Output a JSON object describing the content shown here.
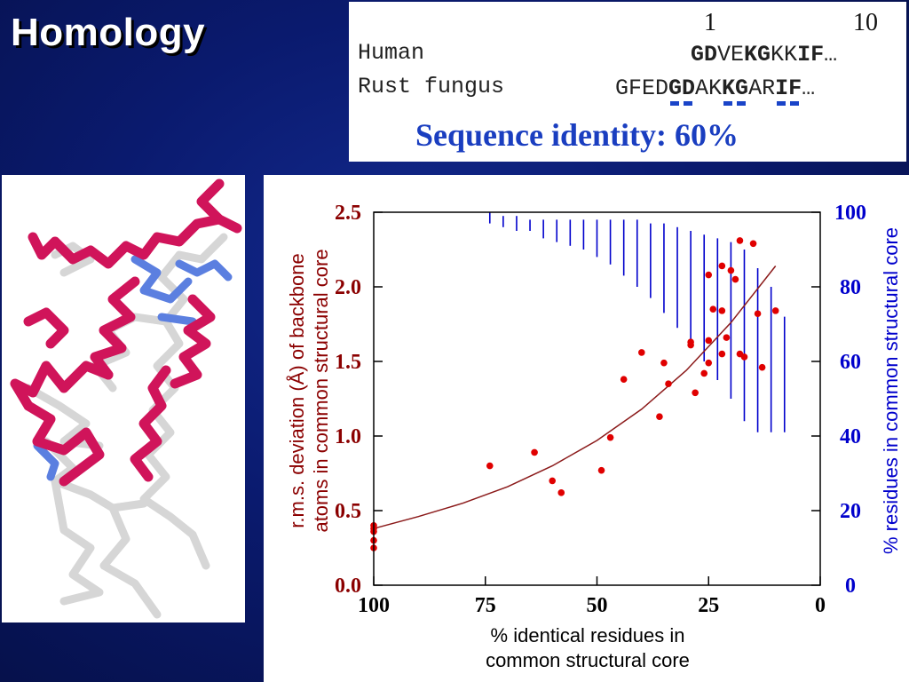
{
  "title": "Homology",
  "alignment": {
    "positions": [
      "1",
      "10"
    ],
    "rows": [
      {
        "species": "Human",
        "segments": [
          {
            "text": "GD",
            "bold": true
          },
          {
            "text": "VE",
            "bold": false
          },
          {
            "text": "KG",
            "bold": true
          },
          {
            "text": "KK",
            "bold": false
          },
          {
            "text": "IF",
            "bold": true
          },
          {
            "text": "…",
            "bold": false
          }
        ]
      },
      {
        "species": "Rust fungus",
        "segments": [
          {
            "text": "GFED",
            "bold": false
          },
          {
            "text": "GD",
            "bold": true
          },
          {
            "text": "AK",
            "bold": false
          },
          {
            "text": "KG",
            "bold": true
          },
          {
            "text": "AR",
            "bold": false
          },
          {
            "text": "IF",
            "bold": true
          },
          {
            "text": "…",
            "bold": false
          }
        ]
      }
    ],
    "identity_label": "Sequence identity:  60%",
    "match_color": "#1a44c8"
  },
  "chart_data": {
    "type": "scatter",
    "xlabel": "% identical residues in common structural core",
    "ylabel": "r.m.s. deviation (Å) of backbone atoms in common structural core",
    "y2label": "% residues in common structural core",
    "xlim": [
      100,
      0
    ],
    "ylim": [
      0.0,
      2.5
    ],
    "y2lim": [
      0,
      100
    ],
    "x_ticks": [
      "100",
      "75",
      "50",
      "25",
      "0"
    ],
    "y_ticks": [
      "0.0",
      "0.5",
      "1.0",
      "1.5",
      "2.0",
      "2.5"
    ],
    "y2_ticks": [
      "0",
      "20",
      "40",
      "60",
      "80",
      "100"
    ],
    "colors": {
      "points": "#e00000",
      "fit": "#8b1a1a",
      "core": "#0000cc",
      "left_axis": "#8b0000",
      "right_axis": "#0000cc"
    },
    "points": [
      {
        "x": 100,
        "y": 0.4
      },
      {
        "x": 100,
        "y": 0.38
      },
      {
        "x": 100,
        "y": 0.36
      },
      {
        "x": 100,
        "y": 0.3
      },
      {
        "x": 100,
        "y": 0.25
      },
      {
        "x": 74,
        "y": 0.8
      },
      {
        "x": 64,
        "y": 0.89
      },
      {
        "x": 60,
        "y": 0.7
      },
      {
        "x": 58,
        "y": 0.62
      },
      {
        "x": 49,
        "y": 0.77
      },
      {
        "x": 47,
        "y": 0.99
      },
      {
        "x": 44,
        "y": 1.38
      },
      {
        "x": 40,
        "y": 1.56
      },
      {
        "x": 36,
        "y": 1.13
      },
      {
        "x": 35,
        "y": 1.49
      },
      {
        "x": 34,
        "y": 1.35
      },
      {
        "x": 29,
        "y": 1.61
      },
      {
        "x": 29,
        "y": 1.63
      },
      {
        "x": 28,
        "y": 1.29
      },
      {
        "x": 26,
        "y": 1.42
      },
      {
        "x": 25,
        "y": 1.49
      },
      {
        "x": 25,
        "y": 1.64
      },
      {
        "x": 25,
        "y": 2.08
      },
      {
        "x": 24,
        "y": 1.85
      },
      {
        "x": 22,
        "y": 1.55
      },
      {
        "x": 22,
        "y": 1.84
      },
      {
        "x": 22,
        "y": 2.14
      },
      {
        "x": 21,
        "y": 1.66
      },
      {
        "x": 20,
        "y": 2.11
      },
      {
        "x": 19,
        "y": 2.05
      },
      {
        "x": 18,
        "y": 2.31
      },
      {
        "x": 18,
        "y": 1.55
      },
      {
        "x": 17,
        "y": 1.53
      },
      {
        "x": 15,
        "y": 2.29
      },
      {
        "x": 14,
        "y": 1.82
      },
      {
        "x": 13,
        "y": 1.46
      },
      {
        "x": 10,
        "y": 1.84
      }
    ],
    "fit_curve": [
      {
        "x": 100,
        "y": 0.38
      },
      {
        "x": 90,
        "y": 0.46
      },
      {
        "x": 80,
        "y": 0.55
      },
      {
        "x": 70,
        "y": 0.66
      },
      {
        "x": 60,
        "y": 0.8
      },
      {
        "x": 50,
        "y": 0.97
      },
      {
        "x": 40,
        "y": 1.18
      },
      {
        "x": 30,
        "y": 1.44
      },
      {
        "x": 20,
        "y": 1.76
      },
      {
        "x": 10,
        "y": 2.14
      }
    ],
    "core_ranges": [
      {
        "x": 74,
        "low": 97,
        "high": 100
      },
      {
        "x": 71,
        "low": 96,
        "high": 99
      },
      {
        "x": 68,
        "low": 95,
        "high": 99
      },
      {
        "x": 65,
        "low": 95,
        "high": 98
      },
      {
        "x": 62,
        "low": 93,
        "high": 98
      },
      {
        "x": 59,
        "low": 92,
        "high": 98
      },
      {
        "x": 56,
        "low": 91,
        "high": 98
      },
      {
        "x": 53,
        "low": 90,
        "high": 98
      },
      {
        "x": 50,
        "low": 88,
        "high": 98
      },
      {
        "x": 47,
        "low": 86,
        "high": 98
      },
      {
        "x": 44,
        "low": 83,
        "high": 98
      },
      {
        "x": 41,
        "low": 80,
        "high": 98
      },
      {
        "x": 38,
        "low": 77,
        "high": 97
      },
      {
        "x": 35,
        "low": 73,
        "high": 97
      },
      {
        "x": 32,
        "low": 69,
        "high": 96
      },
      {
        "x": 29,
        "low": 65,
        "high": 95
      },
      {
        "x": 26,
        "low": 60,
        "high": 94
      },
      {
        "x": 23,
        "low": 55,
        "high": 93
      },
      {
        "x": 20,
        "low": 50,
        "high": 92
      },
      {
        "x": 17,
        "low": 44,
        "high": 90
      },
      {
        "x": 14,
        "low": 41,
        "high": 85
      },
      {
        "x": 11,
        "low": 41,
        "high": 80
      },
      {
        "x": 8,
        "low": 41,
        "high": 72
      }
    ]
  }
}
